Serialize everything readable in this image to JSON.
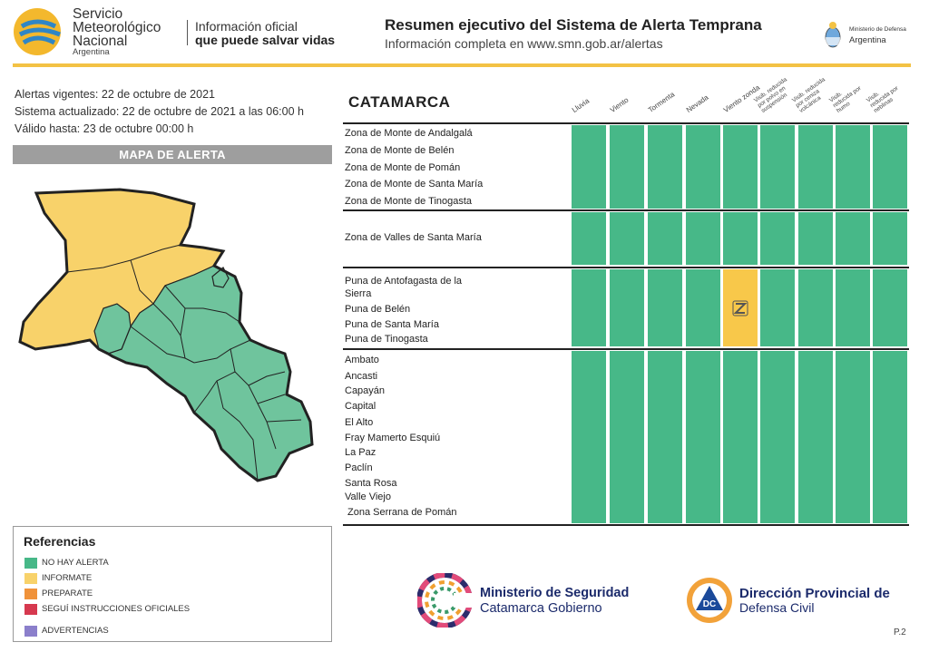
{
  "header": {
    "smn_name_1": "Servicio",
    "smn_name_2": "Meteorológico",
    "smn_name_3": "Nacional",
    "smn_country": "Argentina",
    "tagline_1": "Información oficial",
    "tagline_2": "que puede salvar vidas",
    "title": "Resumen ejecutivo del Sistema de Alerta Temprana",
    "subtitle": "Información completa en www.smn.gob.ar/alertas",
    "ministry_1": "Ministerio de Defensa",
    "ministry_2": "Argentina"
  },
  "info": {
    "line1": "Alertas vigentes: 22 de octubre de 2021",
    "line2": "Sistema actualizado: 22 de octubre de 2021 a las 06:00 h",
    "line3": "Válido hasta: 23 de octubre 00:00 h"
  },
  "map_title": "MAPA DE ALERTA",
  "legend": {
    "title": "Referencias",
    "items": [
      {
        "label": "NO HAY ALERTA",
        "color": "#47b888"
      },
      {
        "label": "INFORMATE",
        "color": "#f8d26a"
      },
      {
        "label": "PREPARATE",
        "color": "#f0923a"
      },
      {
        "label": "SEGUÍ INSTRUCCIONES OFICIALES",
        "color": "#d6394f"
      },
      {
        "label": "ADVERTENCIAS",
        "color": "#8b7fcb"
      }
    ]
  },
  "table": {
    "province": "CATAMARCA",
    "columns": [
      "Lluvia",
      "Viento",
      "Tormenta",
      "Nevada",
      "Viento zonda",
      "Visib. reducida por polvo en suspensión",
      "Visib. reducida por ceniza volcánica",
      "Visib. reducida por humo",
      "Visib. reducida por neblinas"
    ],
    "groups": [
      {
        "zones": [
          "Zona de Monte de Andalgalá",
          "Zona de Monte de Belén",
          "Zona de Monte de Pomán",
          "Zona de Monte de Santa María",
          "Zona de Monte de Tinogasta"
        ],
        "alerts": [
          0,
          0,
          0,
          0,
          0,
          0,
          0,
          0,
          0
        ]
      },
      {
        "zones": [
          "Zona de Valles de Santa María"
        ],
        "alerts": [
          0,
          0,
          0,
          0,
          0,
          0,
          0,
          0,
          0
        ]
      },
      {
        "zones": [
          "Puna de Antofagasta de la",
          "Sierra",
          "Puna de Belén",
          "Puna de Santa María",
          "Puna de Tinogasta"
        ],
        "alerts": [
          0,
          0,
          0,
          0,
          1,
          0,
          0,
          0,
          0
        ]
      },
      {
        "zones": [
          "Ambato",
          "Ancasti",
          "Capayán",
          "Capital",
          "El Alto",
          "Fray Mamerto Esquiú",
          "La Paz",
          "Paclín",
          "Santa Rosa",
          "Valle Viejo",
          "Zona Serrana de Pomán"
        ],
        "alerts": [
          0,
          0,
          0,
          0,
          0,
          0,
          0,
          0,
          0
        ]
      }
    ],
    "yellow_icon": "zonda-z-icon"
  },
  "footer": {
    "seguridad_1": "Ministerio de Seguridad",
    "seguridad_2": "Catamarca Gobierno",
    "dc_badge": "DC",
    "dc_1": "Dirección Provincial de",
    "dc_2": "Defensa Civil",
    "page": "P.2"
  }
}
